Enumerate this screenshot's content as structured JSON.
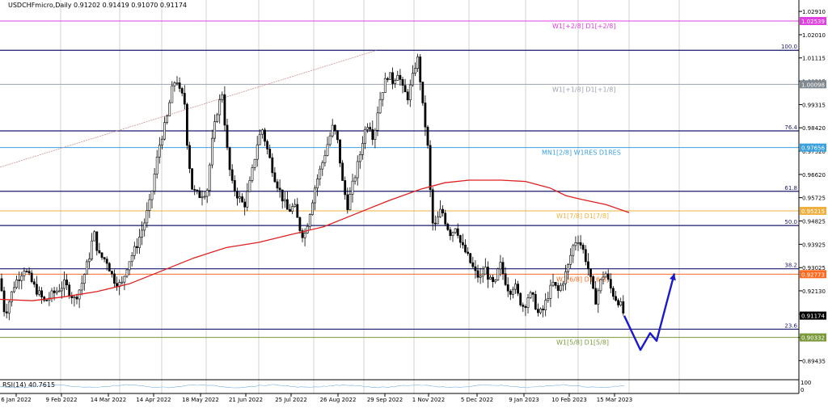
{
  "chart_data": {
    "type": "line",
    "header": "USDCHFmicro,Daily  0.91202 0.91419 0.91070 0.91174",
    "ylim": [
      0.887,
      1.0335
    ],
    "y_ticks": [
      "1.02910",
      "1.02010",
      "1.01115",
      "1.00215",
      "0.99315",
      "0.98420",
      "0.97520",
      "0.96620",
      "0.95725",
      "0.94825",
      "0.93925",
      "0.93025",
      "0.92130",
      "0.91230",
      "0.90330",
      "0.89435"
    ],
    "x_ticks": [
      "6 Jan 2022",
      "9 Feb 2022",
      "14 Mar 2022",
      "14 Apr 2022",
      "18 May 2022",
      "21 Jun 2022",
      "25 Jul 2022",
      "26 Aug 2022",
      "29 Sep 2022",
      "1 Nov 2022",
      "5 Dec 2022",
      "9 Jan 2023",
      "10 Feb 2023",
      "15 Mar 2023"
    ],
    "price_path": [
      [
        0,
        0.926
      ],
      [
        6,
        0.912
      ],
      [
        18,
        0.924
      ],
      [
        30,
        0.93
      ],
      [
        42,
        0.923
      ],
      [
        55,
        0.917
      ],
      [
        65,
        0.92
      ],
      [
        80,
        0.924
      ],
      [
        92,
        0.918
      ],
      [
        100,
        0.923
      ],
      [
        110,
        0.934
      ],
      [
        116,
        0.944
      ],
      [
        122,
        0.935
      ],
      [
        132,
        0.933
      ],
      [
        140,
        0.926
      ],
      [
        150,
        0.923
      ],
      [
        158,
        0.932
      ],
      [
        168,
        0.938
      ],
      [
        178,
        0.947
      ],
      [
        186,
        0.956
      ],
      [
        192,
        0.968
      ],
      [
        198,
        0.979
      ],
      [
        206,
        0.987
      ],
      [
        212,
        0.998
      ],
      [
        218,
        1.004
      ],
      [
        222,
        0.998
      ],
      [
        228,
        0.995
      ],
      [
        232,
        0.976
      ],
      [
        238,
        0.96
      ],
      [
        246,
        0.958
      ],
      [
        256,
        0.96
      ],
      [
        262,
        0.978
      ],
      [
        268,
        0.99
      ],
      [
        275,
        0.998
      ],
      [
        280,
        0.978
      ],
      [
        286,
        0.963
      ],
      [
        294,
        0.958
      ],
      [
        302,
        0.954
      ],
      [
        310,
        0.964
      ],
      [
        318,
        0.978
      ],
      [
        324,
        0.984
      ],
      [
        332,
        0.974
      ],
      [
        340,
        0.965
      ],
      [
        348,
        0.958
      ],
      [
        356,
        0.952
      ],
      [
        364,
        0.954
      ],
      [
        370,
        0.946
      ],
      [
        376,
        0.942
      ],
      [
        382,
        0.95
      ],
      [
        390,
        0.962
      ],
      [
        398,
        0.97
      ],
      [
        406,
        0.979
      ],
      [
        412,
        0.985
      ],
      [
        418,
        0.978
      ],
      [
        424,
        0.962
      ],
      [
        430,
        0.954
      ],
      [
        436,
        0.962
      ],
      [
        444,
        0.972
      ],
      [
        450,
        0.982
      ],
      [
        456,
        0.987
      ],
      [
        462,
        0.98
      ],
      [
        468,
        0.993
      ],
      [
        474,
        1.0
      ],
      [
        480,
        1.005
      ],
      [
        486,
        1.002
      ],
      [
        492,
        1.006
      ],
      [
        498,
        0.999
      ],
      [
        504,
        0.996
      ],
      [
        510,
        1.003
      ],
      [
        516,
        1.012
      ],
      [
        520,
        1.002
      ],
      [
        524,
        0.988
      ],
      [
        528,
        0.982
      ],
      [
        532,
        0.96
      ],
      [
        536,
        0.944
      ],
      [
        540,
        0.948
      ],
      [
        546,
        0.953
      ],
      [
        552,
        0.947
      ],
      [
        558,
        0.943
      ],
      [
        564,
        0.947
      ],
      [
        570,
        0.939
      ],
      [
        576,
        0.936
      ],
      [
        582,
        0.932
      ],
      [
        588,
        0.928
      ],
      [
        594,
        0.926
      ],
      [
        600,
        0.93
      ],
      [
        606,
        0.925
      ],
      [
        612,
        0.923
      ],
      [
        618,
        0.932
      ],
      [
        624,
        0.926
      ],
      [
        630,
        0.921
      ],
      [
        636,
        0.924
      ],
      [
        642,
        0.918
      ],
      [
        648,
        0.915
      ],
      [
        654,
        0.92
      ],
      [
        660,
        0.918
      ],
      [
        666,
        0.912
      ],
      [
        672,
        0.914
      ],
      [
        678,
        0.92
      ],
      [
        684,
        0.924
      ],
      [
        690,
        0.921
      ],
      [
        696,
        0.925
      ],
      [
        702,
        0.93
      ],
      [
        708,
        0.938
      ],
      [
        714,
        0.942
      ],
      [
        720,
        0.938
      ],
      [
        726,
        0.932
      ],
      [
        732,
        0.923
      ],
      [
        736,
        0.917
      ],
      [
        742,
        0.924
      ],
      [
        748,
        0.929
      ],
      [
        754,
        0.923
      ],
      [
        760,
        0.919
      ],
      [
        766,
        0.917
      ],
      [
        772,
        0.9117
      ]
    ],
    "ma_path": [
      [
        0,
        0.918
      ],
      [
        40,
        0.9175
      ],
      [
        80,
        0.919
      ],
      [
        120,
        0.921
      ],
      [
        160,
        0.924
      ],
      [
        200,
        0.929
      ],
      [
        240,
        0.934
      ],
      [
        280,
        0.938
      ],
      [
        320,
        0.94
      ],
      [
        360,
        0.943
      ],
      [
        400,
        0.946
      ],
      [
        440,
        0.951
      ],
      [
        480,
        0.956
      ],
      [
        520,
        0.9605
      ],
      [
        550,
        0.963
      ],
      [
        580,
        0.964
      ],
      [
        620,
        0.964
      ],
      [
        650,
        0.9635
      ],
      [
        680,
        0.961
      ],
      [
        700,
        0.958
      ],
      [
        720,
        0.9565
      ],
      [
        750,
        0.9545
      ],
      [
        778,
        0.9515
      ]
    ],
    "projection": [
      [
        772,
        0.9117
      ],
      [
        792,
        0.8985
      ],
      [
        804,
        0.905
      ],
      [
        812,
        0.902
      ],
      [
        834,
        0.928
      ]
    ],
    "trend_line": [
      [
        0,
        0.969
      ],
      [
        465,
        1.014
      ]
    ],
    "vlines_x": [
      75,
      148,
      200,
      255,
      320,
      388,
      450,
      512,
      580,
      650,
      715,
      778,
      840
    ],
    "hlines": [
      {
        "value": 1.02539,
        "color": "#e040e0",
        "label": "W1[+2/8] D1[+2/8]",
        "tag": "1.02539",
        "tag_bg": "#e040e0"
      },
      {
        "value": 1.0141,
        "color": "#1a1a6e",
        "label": "100.0",
        "tag": "",
        "tag_bg": ""
      },
      {
        "value": 1.00098,
        "color": "#9ca3af",
        "label": "W1[+1/8] D1[+1/8]",
        "tag": "1.00098",
        "tag_bg": "#808890"
      },
      {
        "value": 0.983,
        "color": "#1a1a6e",
        "label": "76.4",
        "tag": "",
        "tag_bg": ""
      },
      {
        "value": 0.97656,
        "color": "#3aa0e0",
        "label": "MN1[2/8] W1RES D1RES",
        "tag": "0.97656",
        "tag_bg": "#3aa0e0"
      },
      {
        "value": 0.9597,
        "color": "#1a1a6e",
        "label": "61.8",
        "tag": "",
        "tag_bg": ""
      },
      {
        "value": 0.95215,
        "color": "#f0b040",
        "label": "W1[7/8] D1[7/8]",
        "tag": "0.95215",
        "tag_bg": "#f0b040"
      },
      {
        "value": 0.9465,
        "color": "#1a1a6e",
        "label": "50.0",
        "tag": "",
        "tag_bg": ""
      },
      {
        "value": 0.9298,
        "color": "#1a1a6e",
        "label": "38.2",
        "tag": "",
        "tag_bg": ""
      },
      {
        "value": 0.92773,
        "color": "#ff6a20",
        "label": "W1[6/8] D1[6/8]",
        "tag": "0.92773",
        "tag_bg": "#ff6a20"
      },
      {
        "value": 0.9065,
        "color": "#1a1a6e",
        "label": "23.6",
        "tag": "",
        "tag_bg": ""
      },
      {
        "value": 0.90332,
        "color": "#7a9a3a",
        "label": "W1[5/8] D1[5/8]",
        "tag": "0.90332",
        "tag_bg": "#7a9a3a"
      }
    ],
    "current_price": {
      "value": 0.91174,
      "tag": "0.91174"
    },
    "rsi": {
      "label": "RSI(14) 40.7615",
      "ticks": [
        "100",
        "0"
      ]
    },
    "colors": {
      "candle": "#000000",
      "ma": "#e02020",
      "projection": "#1a1acc",
      "trend": "#d09090"
    }
  }
}
